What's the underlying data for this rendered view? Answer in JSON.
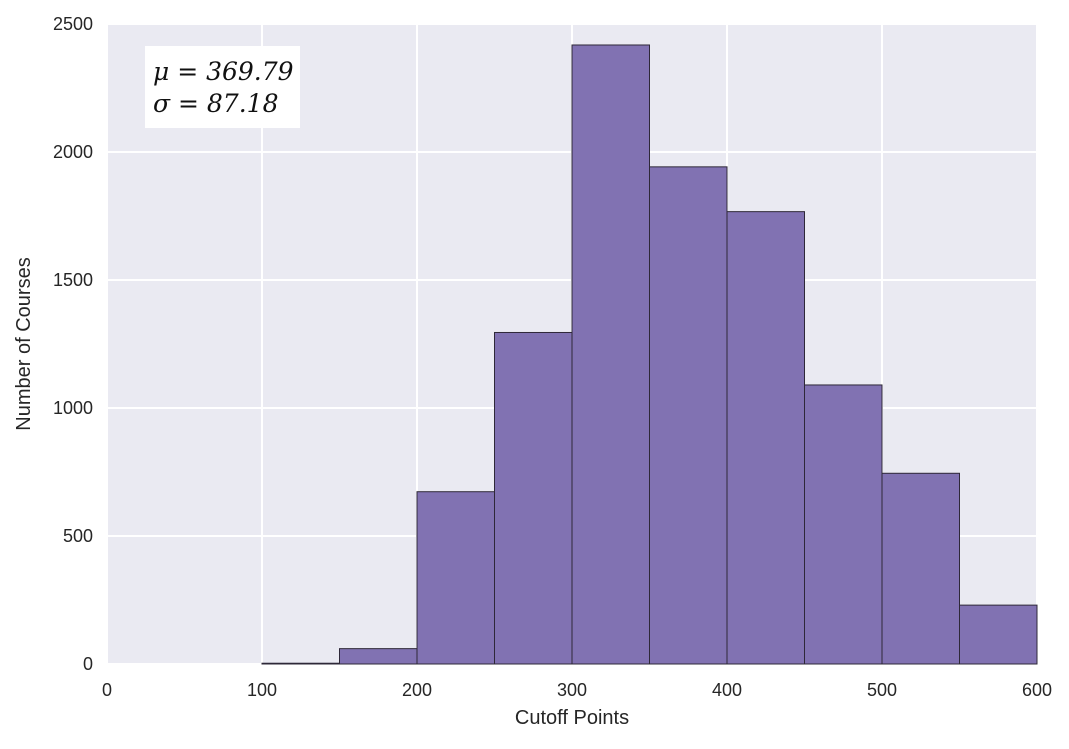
{
  "chart_data": {
    "type": "bar",
    "title": "",
    "xlabel": "Cutoff Points",
    "ylabel": "Number of Courses",
    "xlim": [
      0,
      600
    ],
    "ylim": [
      0,
      2500
    ],
    "xticks": [
      "0",
      "100",
      "200",
      "300",
      "400",
      "500",
      "600"
    ],
    "yticks": [
      "0",
      "500",
      "1000",
      "1500",
      "2000",
      "2500"
    ],
    "grid": true,
    "bins": [
      {
        "start": 0,
        "end": 50,
        "count": 0
      },
      {
        "start": 50,
        "end": 100,
        "count": 0
      },
      {
        "start": 100,
        "end": 150,
        "count": 3
      },
      {
        "start": 150,
        "end": 200,
        "count": 60
      },
      {
        "start": 200,
        "end": 250,
        "count": 673
      },
      {
        "start": 250,
        "end": 300,
        "count": 1295
      },
      {
        "start": 300,
        "end": 350,
        "count": 2418
      },
      {
        "start": 350,
        "end": 400,
        "count": 1942
      },
      {
        "start": 400,
        "end": 450,
        "count": 1767
      },
      {
        "start": 450,
        "end": 500,
        "count": 1090
      },
      {
        "start": 500,
        "end": 550,
        "count": 745
      },
      {
        "start": 550,
        "end": 600,
        "count": 230
      }
    ],
    "annotation": {
      "mu_line": "μ = 369.79",
      "sigma_line": "σ = 87.18",
      "position": "top-left"
    },
    "colors": {
      "bar_fill": "#8172b2",
      "bar_edge": "#2e2838",
      "plot_background": "#eaeaf2",
      "grid": "#ffffff"
    }
  }
}
